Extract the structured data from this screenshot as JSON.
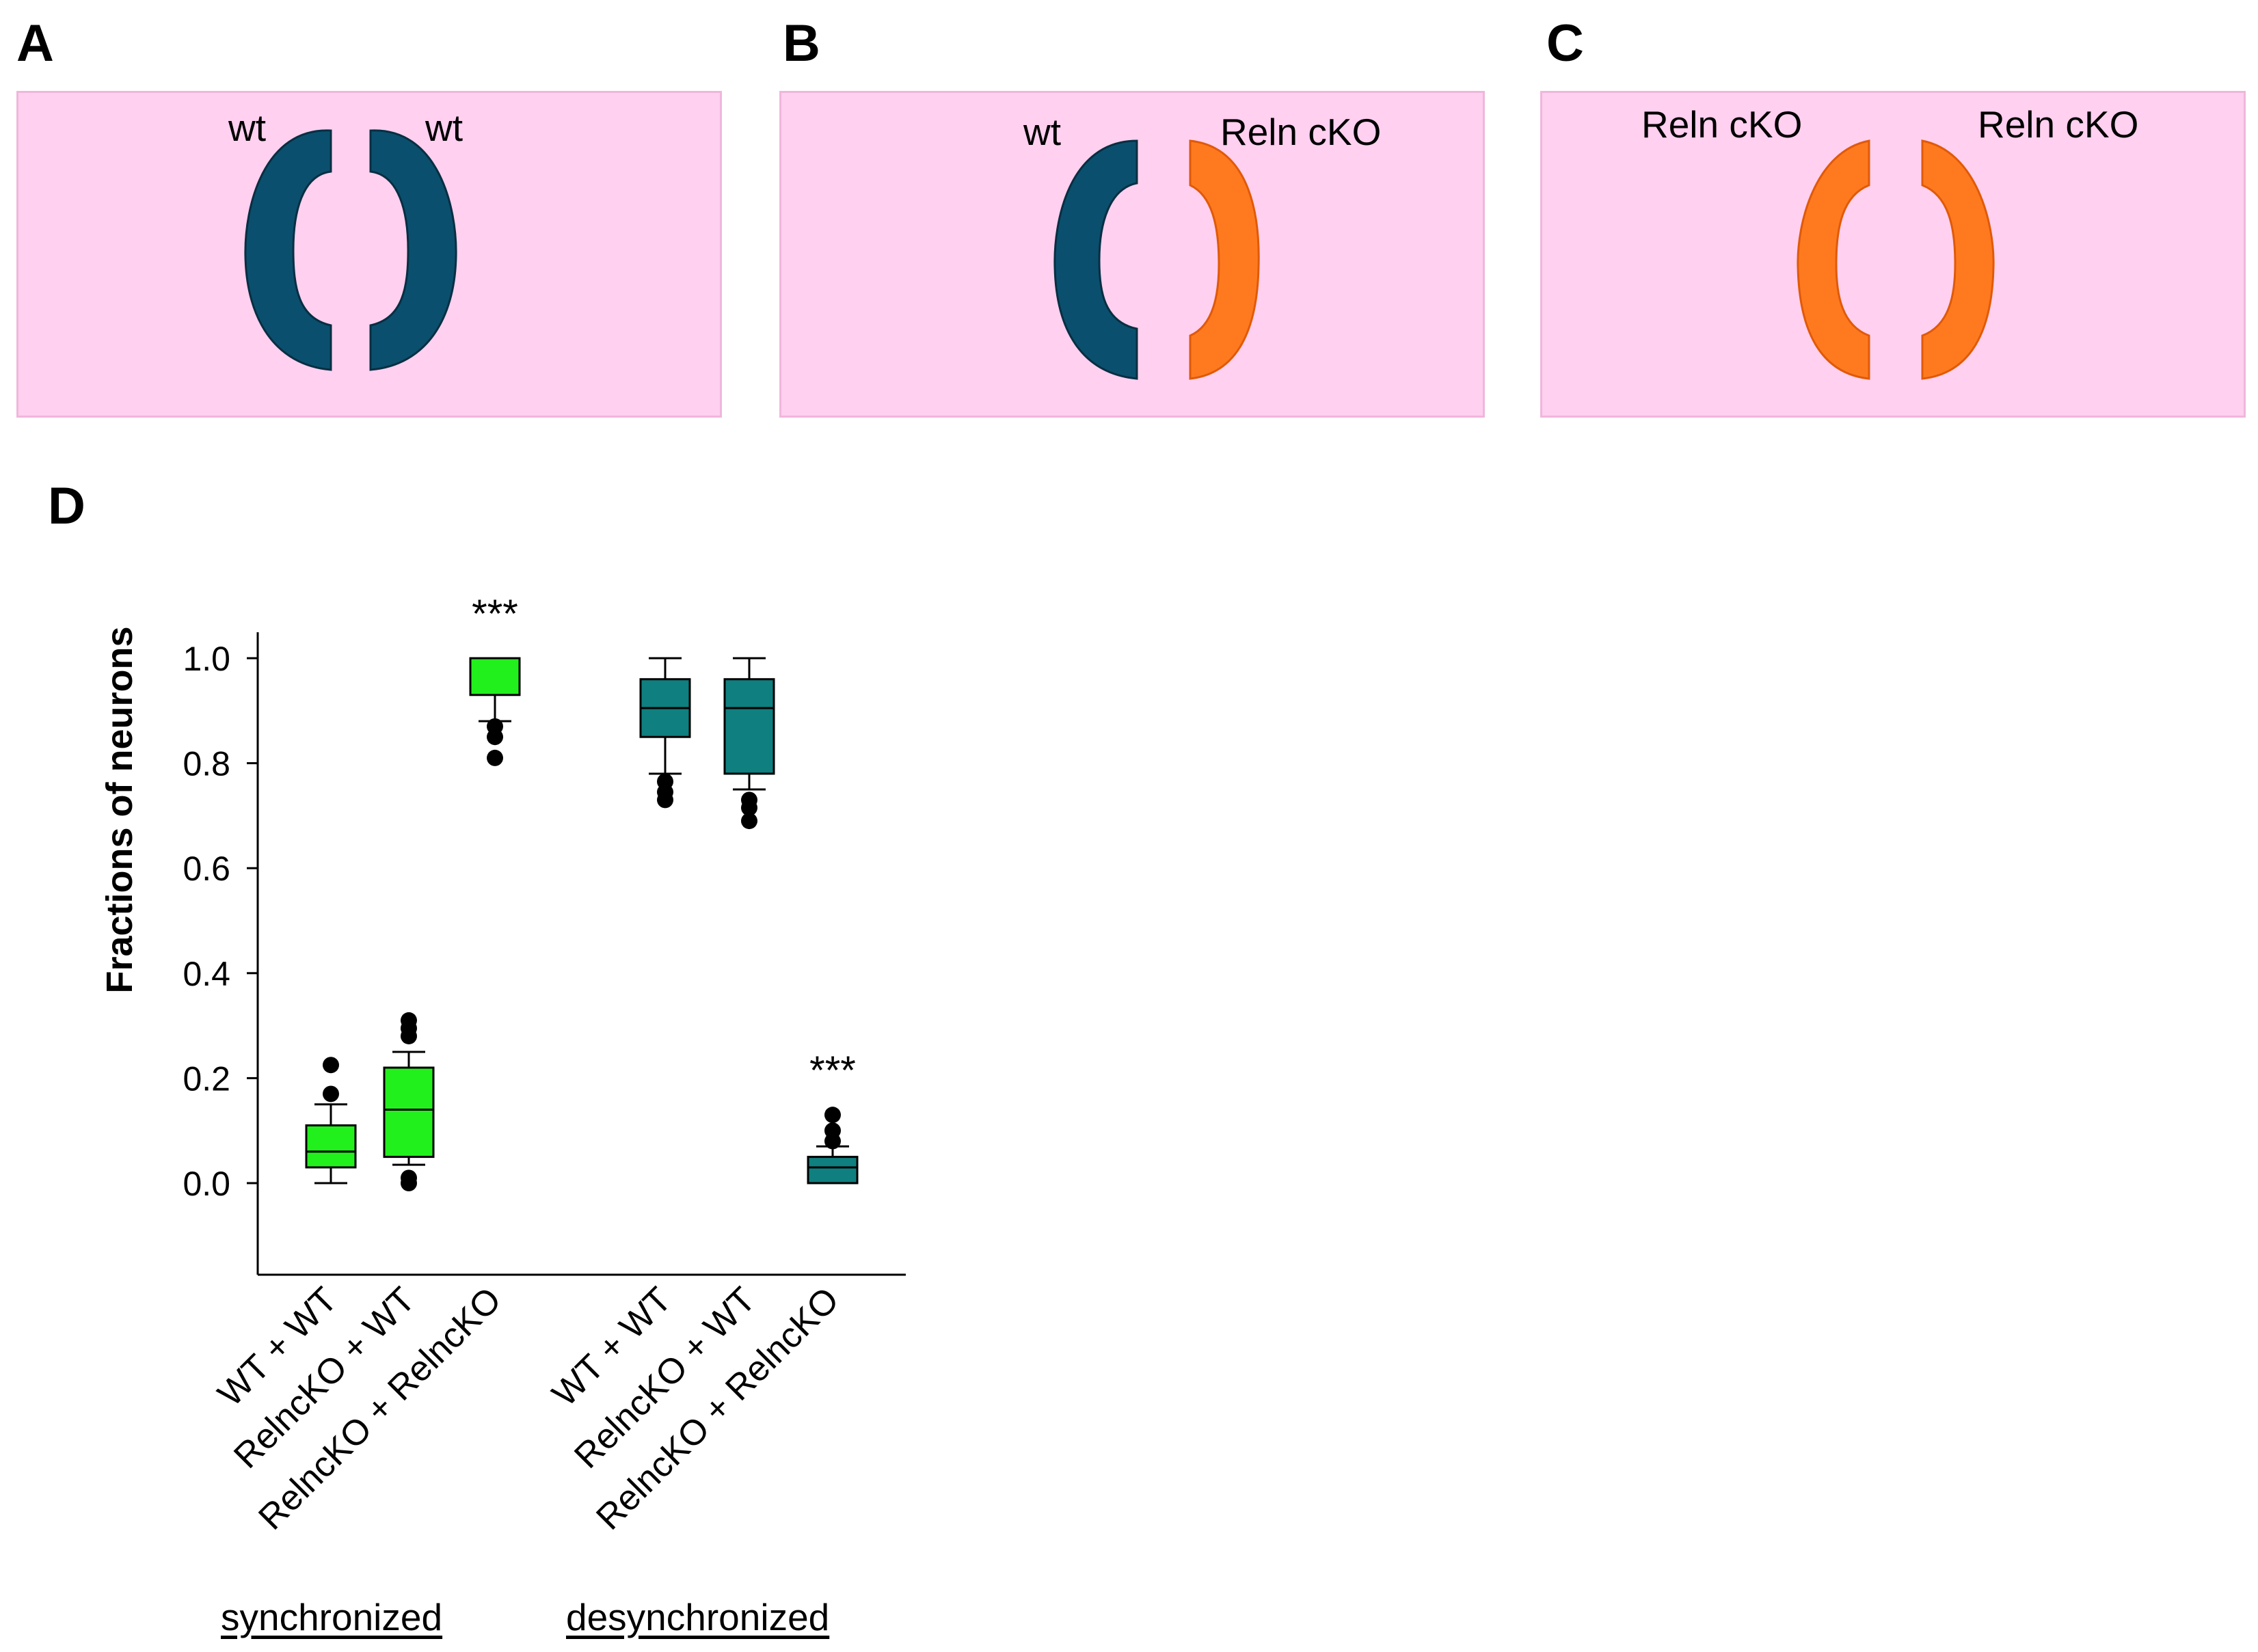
{
  "panels": {
    "A": {
      "letter": "A",
      "left_label": "wt",
      "right_label": "wt"
    },
    "B": {
      "letter": "B",
      "left_label": "wt",
      "right_label": "Reln cKO"
    },
    "C": {
      "letter": "C",
      "left_label": "Reln cKO",
      "right_label": "Reln cKO"
    },
    "D": {
      "letter": "D"
    }
  },
  "colors": {
    "background_pink": "#ffd0f0",
    "wt_slice": "#0b4f6e",
    "cko_slice": "#ff7a1f",
    "synchronized_box": "#22f01c",
    "desynchronized_box": "#0f7f7f"
  },
  "chart_data": {
    "type": "boxplot",
    "ylabel": "Fractions of neurons",
    "xlabel": "",
    "ylim": [
      -0.18,
      1.05
    ],
    "yticks": [
      "0.0",
      "0.2",
      "0.4",
      "0.6",
      "0.8",
      "1.0"
    ],
    "grid": false,
    "groups": [
      "synchronized",
      "desynchronized"
    ],
    "categories": [
      "WT + WT",
      "RelncKO + WT",
      "RelncKO + RelncKO",
      "WT + WT",
      "RelncKO + WT",
      "RelncKO + RelncKO"
    ],
    "boxes": [
      {
        "group": "synchronized",
        "category": "WT + WT",
        "whisker_low": 0.0,
        "q1": 0.03,
        "median": 0.06,
        "q3": 0.11,
        "whisker_high": 0.15,
        "outliers": [
          0.17,
          0.225
        ],
        "annotation": ""
      },
      {
        "group": "synchronized",
        "category": "RelncKO + WT",
        "whisker_low": 0.035,
        "q1": 0.05,
        "median": 0.14,
        "q3": 0.22,
        "whisker_high": 0.25,
        "outliers": [
          0.0,
          0.01,
          0.28,
          0.295,
          0.31
        ],
        "annotation": ""
      },
      {
        "group": "synchronized",
        "category": "RelncKO + RelncKO",
        "whisker_low": 0.88,
        "q1": 0.93,
        "median": 1.0,
        "q3": 1.0,
        "whisker_high": 1.0,
        "outliers": [
          0.81,
          0.85,
          0.87
        ],
        "annotation": "***"
      },
      {
        "group": "desynchronized",
        "category": "WT + WT",
        "whisker_low": 0.78,
        "q1": 0.85,
        "median": 0.905,
        "q3": 0.96,
        "whisker_high": 1.0,
        "outliers": [
          0.73,
          0.745,
          0.765
        ],
        "annotation": ""
      },
      {
        "group": "desynchronized",
        "category": "RelncKO + WT",
        "whisker_low": 0.75,
        "q1": 0.78,
        "median": 0.905,
        "q3": 0.96,
        "whisker_high": 1.0,
        "outliers": [
          0.69,
          0.715,
          0.73
        ],
        "annotation": ""
      },
      {
        "group": "desynchronized",
        "category": "RelncKO + RelncKO",
        "whisker_low": 0.0,
        "q1": 0.0,
        "median": 0.03,
        "q3": 0.05,
        "whisker_high": 0.07,
        "outliers": [
          0.08,
          0.1,
          0.13
        ],
        "annotation": "***"
      }
    ]
  }
}
